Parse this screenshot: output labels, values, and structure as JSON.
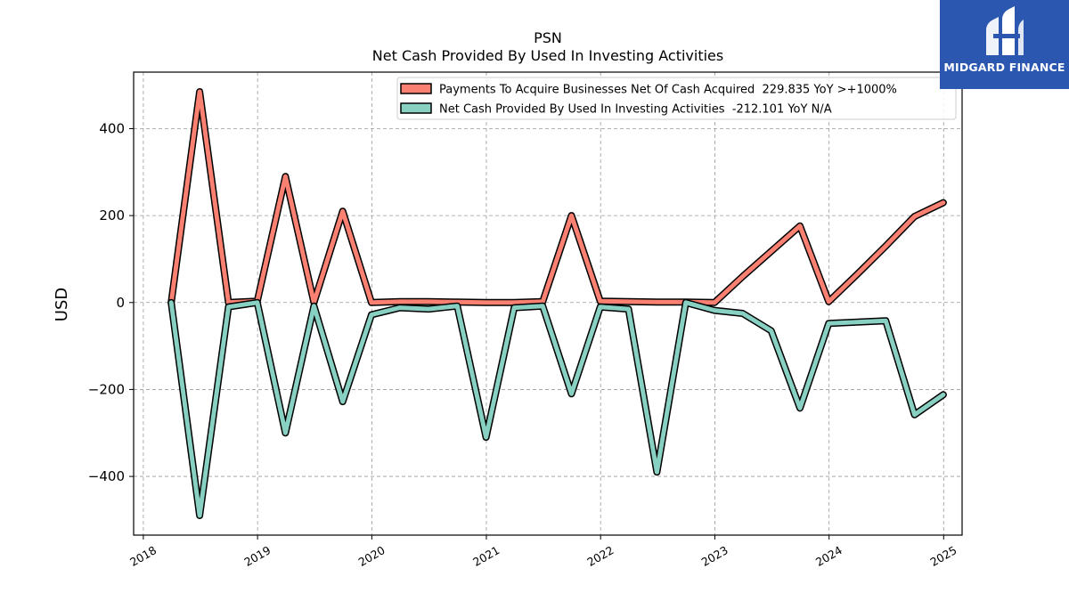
{
  "logo": {
    "text": "MIDGARD FINANCE",
    "color": "#2b57b0"
  },
  "chart_data": {
    "type": "line",
    "title": "PSN",
    "subtitle": "Net Cash Provided By Used In Investing Activities",
    "ylabel": "USD",
    "xlabel": "",
    "xlim": [
      "2017-12-01",
      "2025-03-01"
    ],
    "ylim": [
      -535,
      530
    ],
    "yticks": [
      -400,
      -200,
      0,
      200,
      400
    ],
    "ytick_labels": [
      "−400",
      "−200",
      "0",
      "200",
      "400"
    ],
    "xticks": [
      "2018-01-01",
      "2019-01-01",
      "2020-01-01",
      "2021-01-01",
      "2022-01-01",
      "2023-01-01",
      "2024-01-01",
      "2025-01-01"
    ],
    "xtick_labels": [
      "2018",
      "2019",
      "2020",
      "2021",
      "2022",
      "2023",
      "2024",
      "2025"
    ],
    "grid": true,
    "legend_position": "top-right",
    "series": [
      {
        "name": "Payments To Acquire Businesses Net Of Cash Acquired  229.835 YoY >+1000%",
        "color": "#fa8072",
        "points": [
          [
            "2018-03-31",
            0
          ],
          [
            "2018-06-30",
            485
          ],
          [
            "2018-09-30",
            0
          ],
          [
            "2018-12-31",
            3
          ],
          [
            "2019-03-31",
            290
          ],
          [
            "2019-06-30",
            0
          ],
          [
            "2019-09-30",
            210
          ],
          [
            "2019-12-31",
            0
          ],
          [
            "2020-03-31",
            2
          ],
          [
            "2020-06-30",
            2
          ],
          [
            "2020-09-30",
            1
          ],
          [
            "2020-12-31",
            0
          ],
          [
            "2021-03-31",
            0
          ],
          [
            "2021-06-30",
            2
          ],
          [
            "2021-09-30",
            200
          ],
          [
            "2021-12-31",
            3
          ],
          [
            "2022-03-31",
            2
          ],
          [
            "2022-06-30",
            1
          ],
          [
            "2022-09-30",
            1
          ],
          [
            "2022-12-31",
            0
          ],
          [
            "2023-03-31",
            60
          ],
          [
            "2023-06-30",
            118
          ],
          [
            "2023-09-30",
            176
          ],
          [
            "2023-12-31",
            2
          ],
          [
            "2024-03-31",
            65
          ],
          [
            "2024-06-30",
            130
          ],
          [
            "2024-09-30",
            198
          ],
          [
            "2024-12-31",
            229.835
          ]
        ]
      },
      {
        "name": "Net Cash Provided By Used In Investing Activities  -212.101 YoY N/A",
        "color": "#88d0c2",
        "points": [
          [
            "2018-03-31",
            0
          ],
          [
            "2018-06-30",
            -490
          ],
          [
            "2018-09-30",
            -10
          ],
          [
            "2018-12-31",
            0
          ],
          [
            "2019-03-31",
            -300
          ],
          [
            "2019-06-30",
            -8
          ],
          [
            "2019-09-30",
            -228
          ],
          [
            "2019-12-31",
            -28
          ],
          [
            "2020-03-31",
            -12
          ],
          [
            "2020-06-30",
            -15
          ],
          [
            "2020-09-30",
            -8
          ],
          [
            "2020-12-31",
            -310
          ],
          [
            "2021-03-31",
            -12
          ],
          [
            "2021-06-30",
            -8
          ],
          [
            "2021-09-30",
            -210
          ],
          [
            "2021-12-31",
            -10
          ],
          [
            "2022-03-31",
            -15
          ],
          [
            "2022-06-30",
            -390
          ],
          [
            "2022-09-30",
            0
          ],
          [
            "2022-12-31",
            -18
          ],
          [
            "2023-03-31",
            -25
          ],
          [
            "2023-06-30",
            -65
          ],
          [
            "2023-09-30",
            -243
          ],
          [
            "2023-12-31",
            -48
          ],
          [
            "2024-03-31",
            -45
          ],
          [
            "2024-06-30",
            -42
          ],
          [
            "2024-09-30",
            -258
          ],
          [
            "2024-12-31",
            -212.101
          ]
        ]
      }
    ]
  }
}
